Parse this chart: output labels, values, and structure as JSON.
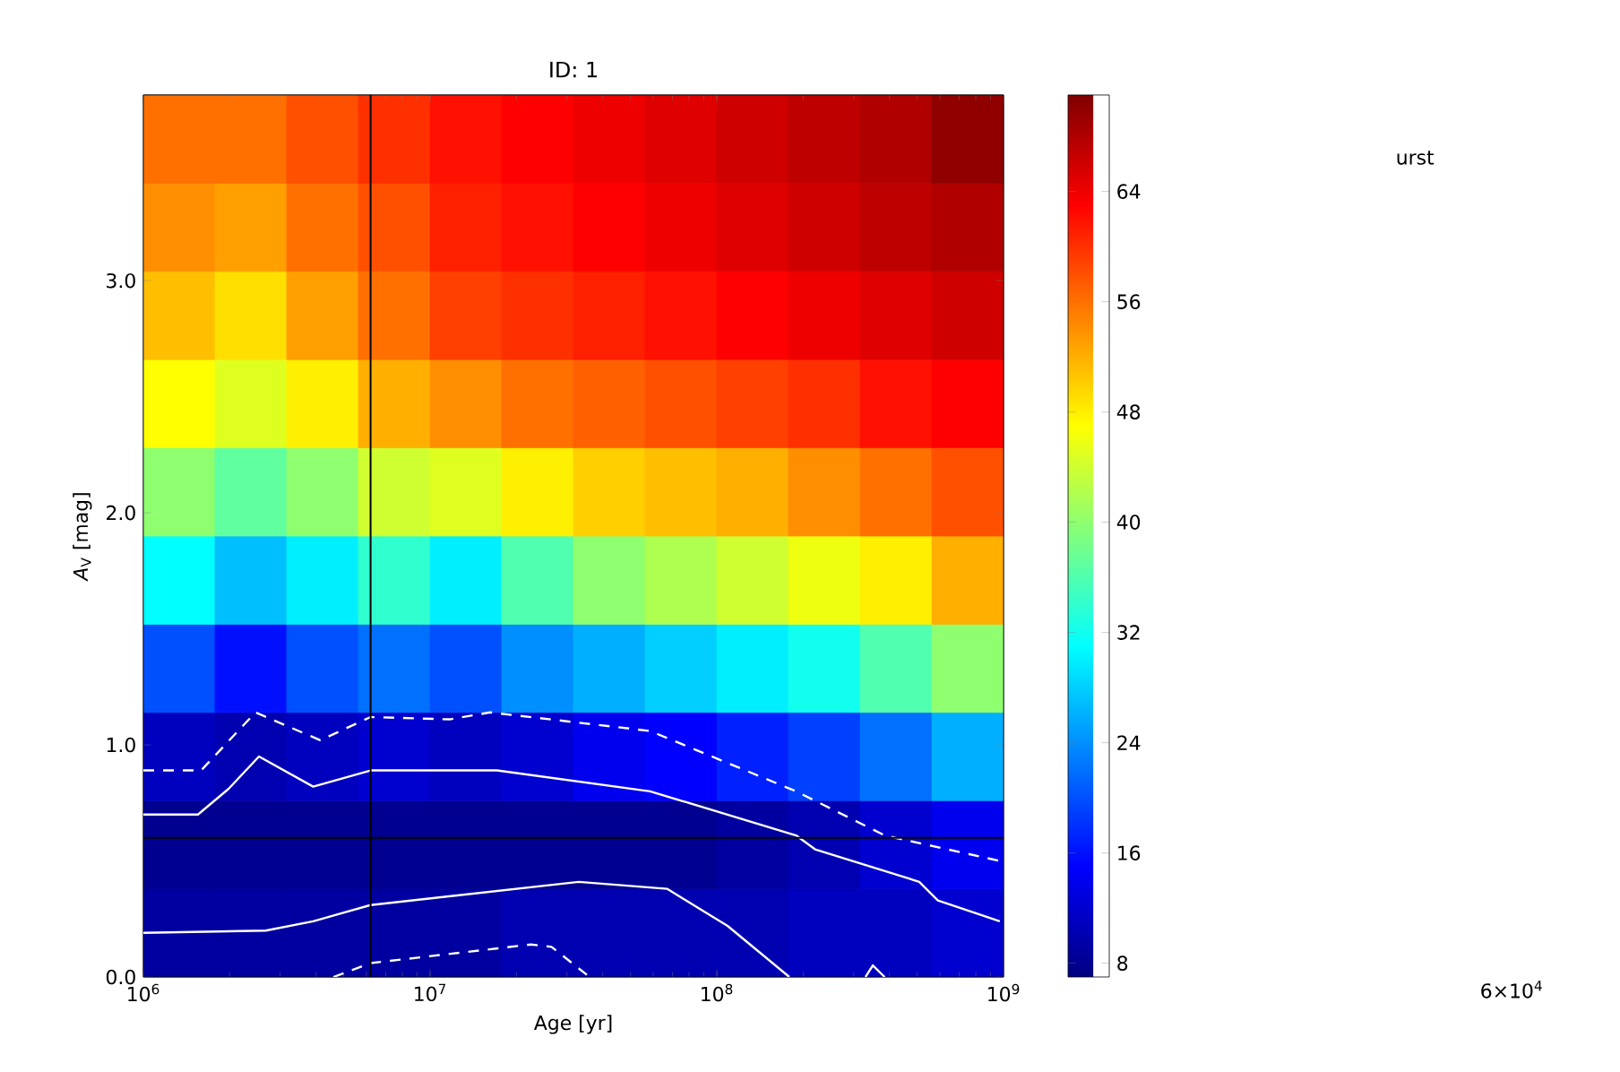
{
  "chart_data": [
    {
      "type": "heatmap",
      "clim": [
        7,
        71
      ],
      "cticks": [
        8,
        16,
        24,
        32,
        40,
        48,
        56,
        64
      ],
      "categories": [
        null,
        null,
        null,
        null,
        null,
        null,
        null,
        null,
        null,
        null,
        null,
        null
      ],
      "y_categories": [
        null,
        null,
        null,
        null,
        null,
        null,
        null,
        null,
        null,
        null
      ],
      "cells": [
        [
          56,
          56,
          58,
          60,
          62,
          63,
          64,
          65,
          66,
          67,
          68,
          70
        ],
        [
          54,
          53,
          56,
          58,
          61,
          62,
          63,
          64,
          65,
          66,
          67,
          68
        ],
        [
          51,
          49,
          53,
          56,
          59,
          60,
          61,
          62,
          63,
          64,
          65,
          66
        ],
        [
          47,
          45,
          48,
          52,
          54,
          56,
          57,
          58,
          59,
          60,
          62,
          63
        ],
        [
          40,
          37,
          40,
          44,
          45,
          48,
          50,
          51,
          52,
          54,
          56,
          58
        ],
        [
          31,
          27,
          30,
          34,
          30,
          36,
          40,
          42,
          44,
          46,
          48,
          52
        ],
        [
          20,
          16,
          20,
          22,
          20,
          24,
          26,
          28,
          30,
          32,
          36,
          40
        ],
        [
          11,
          10,
          11,
          12,
          11,
          12,
          14,
          15,
          17,
          19,
          22,
          26
        ],
        [
          8,
          8,
          8,
          8,
          8,
          8,
          8,
          8,
          9,
          10,
          12,
          14
        ],
        [
          9,
          9,
          9,
          9,
          9,
          10,
          10,
          10,
          10,
          11,
          11,
          12
        ]
      ]
    },
    {
      "type": "line",
      "title": "ID: 1",
      "xlabel": "Age [yr]",
      "ylabel": "*A*$_{V}$ [mag]",
      "log": "x",
      "xlim": [
        1000000,
        1000000000
      ],
      "ylim": [
        0,
        3.8
      ],
      "xticks": [
        {
          "value": 1000000,
          "label": "10$^{6}$"
        },
        {
          "value": 10000000,
          "label": "10$^{7}$"
        },
        {
          "value": 100000000,
          "label": "10$^{8}$"
        },
        {
          "value": 1000000000,
          "label": "10$^{9}$"
        }
      ],
      "yticks": [
        {
          "value": 0,
          "label": "0.0"
        },
        {
          "value": 1,
          "label": "1.0"
        },
        {
          "value": 2,
          "label": "2.0"
        },
        {
          "value": 3,
          "label": "3.0"
        }
      ],
      "series": [
        {
          "color": "#ffffff",
          "line_style": "dashed",
          "x": [
            1000000,
            1590000,
            2460000,
            4140000,
            6200000,
            11700000,
            16200000,
            58500000,
            189000000,
            385000000,
            970000000
          ],
          "values": [
            0.89,
            0.89,
            1.14,
            1.02,
            1.12,
            1.11,
            1.14,
            1.06,
            0.8,
            0.61,
            0.5
          ]
        },
        {
          "color": "#ffffff",
          "line_style": "solid",
          "x": [
            1000000,
            1550000,
            1980000,
            2530000,
            3910000,
            6200000,
            17100000,
            58500000,
            189000000,
            220000000,
            508000000,
            590000000,
            970000000
          ],
          "values": [
            0.7,
            0.7,
            0.81,
            0.95,
            0.82,
            0.89,
            0.89,
            0.8,
            0.61,
            0.55,
            0.41,
            0.33,
            0.24
          ]
        },
        {
          "color": "#ffffff",
          "line_style": "solid",
          "x": [
            1000000,
            2670000,
            3910000,
            6200000,
            33000000,
            67000000,
            109000000,
            179000000
          ],
          "values": [
            0.19,
            0.2,
            0.24,
            0.31,
            0.41,
            0.38,
            0.22,
            0.0
          ]
        },
        {
          "color": "#ffffff",
          "line_style": "solid",
          "x": [
            330000000,
            350000000,
            385000000
          ],
          "values": [
            0.0,
            0.05,
            0.0
          ]
        },
        {
          "color": "#ffffff",
          "line_style": "dashed",
          "x": [
            4600000,
            6200000,
            22500000,
            26500000,
            36000000
          ],
          "values": [
            0.0,
            0.06,
            0.14,
            0.13,
            0.0
          ]
        }
      ],
      "ref_lines": [
        {
          "axis": "x",
          "value": 6200000,
          "color": "#000000"
        },
        {
          "axis": "y",
          "value": 0.6,
          "color": "#000000"
        }
      ],
      "annotations": [
        "urst",
        "6×10$^{4}$"
      ]
    }
  ]
}
